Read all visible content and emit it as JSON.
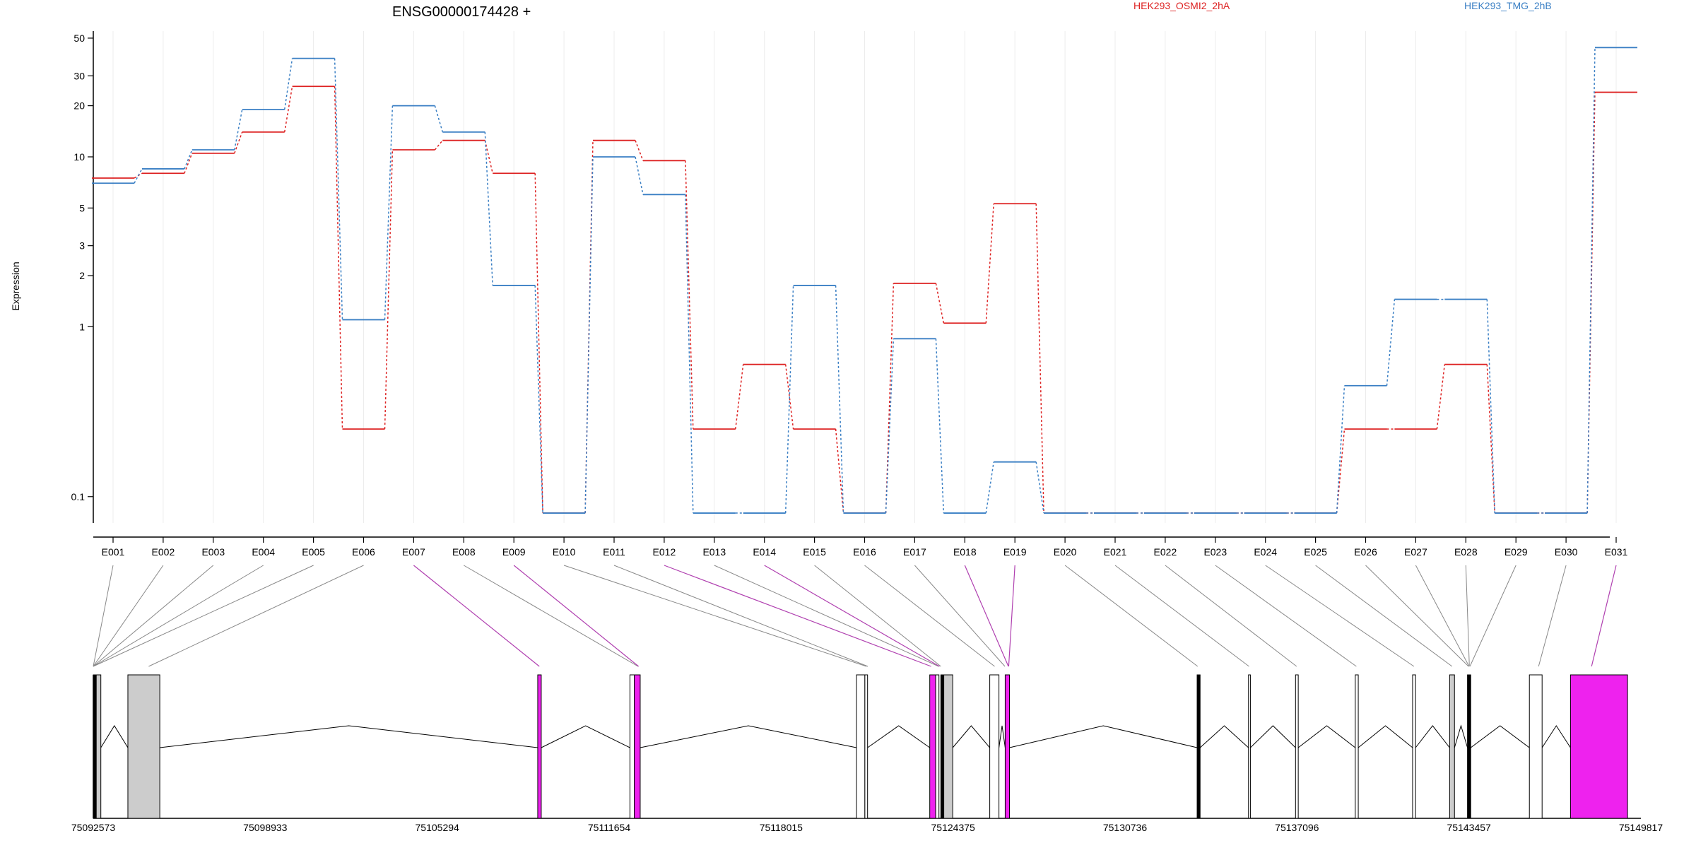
{
  "chart_data": {
    "type": "line",
    "title": "ENSG00000174428 +",
    "ylabel": "Expression",
    "xlabel": "",
    "y_scale": "log",
    "ylim": [
      0.07,
      55
    ],
    "y_ticks": [
      0.1,
      1,
      2,
      3,
      5,
      10,
      20,
      30,
      50
    ],
    "y_tick_labels": [
      "0.1",
      "1",
      "2",
      "3",
      "5",
      "10",
      "20",
      "30",
      "50"
    ],
    "grid": "vertical lines at exon positions",
    "legend_placement": "top",
    "categories": [
      "E001",
      "E002",
      "E003",
      "E004",
      "E005",
      "E006",
      "E007",
      "E008",
      "E009",
      "E010",
      "E011",
      "E012",
      "E013",
      "E014",
      "E015",
      "E016",
      "E017",
      "E018",
      "E019",
      "E020",
      "E021",
      "E022",
      "E023",
      "E024",
      "E025",
      "E026",
      "E027",
      "E028",
      "E029",
      "E030",
      "E031"
    ],
    "series": [
      {
        "name": "HEK293_OSMI2_2hA",
        "color": "#dd2222",
        "values": [
          7.5,
          8,
          10.5,
          14,
          26,
          0.25,
          11,
          12.5,
          8,
          0.08,
          12.5,
          9.5,
          0.25,
          0.6,
          0.25,
          0.08,
          1.8,
          1.05,
          5.3,
          0.08,
          0.08,
          0.08,
          0.08,
          0.08,
          0.08,
          0.25,
          0.25,
          0.6,
          0.08,
          0.08,
          24
        ]
      },
      {
        "name": "HEK293_TMG_2hB",
        "color": "#3a7fc4",
        "values": [
          7,
          8.5,
          11,
          19,
          38,
          1.1,
          20,
          14,
          1.75,
          0.08,
          10,
          6,
          0.08,
          0.08,
          1.75,
          0.08,
          0.85,
          0.08,
          0.16,
          0.08,
          0.08,
          0.08,
          0.08,
          0.08,
          0.08,
          0.45,
          1.45,
          1.45,
          0.08,
          0.08,
          44
        ]
      }
    ],
    "gene_model": {
      "coordinate_labels": [
        "75092573",
        "75098933",
        "75105294",
        "75111654",
        "75118015",
        "75124375",
        "75130736",
        "75137096",
        "75143457",
        "75149817"
      ],
      "coord_start": 75092573,
      "coord_end": 75149817,
      "exons": [
        {
          "start": 75092573,
          "end": 75092683,
          "fill": "#000000"
        },
        {
          "start": 75092683,
          "end": 75092853,
          "fill": "#cccccc"
        },
        {
          "start": 75093853,
          "end": 75095033,
          "fill": "#cccccc"
        },
        {
          "start": 75109013,
          "end": 75109143,
          "fill": "#ee22ee"
        },
        {
          "start": 75112423,
          "end": 75112583,
          "fill": "#ffffff"
        },
        {
          "start": 75112583,
          "end": 75112803,
          "fill": "#ee22ee"
        },
        {
          "start": 75120803,
          "end": 75121113,
          "fill": "#ffffff"
        },
        {
          "start": 75121113,
          "end": 75121213,
          "fill": "#ffffff"
        },
        {
          "start": 75123513,
          "end": 75123733,
          "fill": "#ee22ee"
        },
        {
          "start": 75123733,
          "end": 75123853,
          "fill": "#ffffff"
        },
        {
          "start": 75123923,
          "end": 75124033,
          "fill": "#000000"
        },
        {
          "start": 75124033,
          "end": 75124363,
          "fill": "#cccccc"
        },
        {
          "start": 75125733,
          "end": 75126073,
          "fill": "#ffffff"
        },
        {
          "start": 75126303,
          "end": 75126463,
          "fill": "#ee22ee"
        },
        {
          "start": 75133403,
          "end": 75133513,
          "fill": "#000000"
        },
        {
          "start": 75135303,
          "end": 75135373,
          "fill": "#ffffff"
        },
        {
          "start": 75137043,
          "end": 75137143,
          "fill": "#ffffff"
        },
        {
          "start": 75139253,
          "end": 75139363,
          "fill": "#ffffff"
        },
        {
          "start": 75141373,
          "end": 75141483,
          "fill": "#ffffff"
        },
        {
          "start": 75142743,
          "end": 75142923,
          "fill": "#cccccc"
        },
        {
          "start": 75143403,
          "end": 75143523,
          "fill": "#000000"
        },
        {
          "start": 75145693,
          "end": 75146163,
          "fill": "#ffffff"
        },
        {
          "start": 75147213,
          "end": 75149323,
          "fill": "#ee22ee"
        }
      ],
      "connector_targets": [
        75092573,
        75092573,
        75092573,
        75092573,
        75092573,
        75094623,
        75109073,
        75112723,
        75112743,
        75121173,
        75121223,
        75123563,
        75123843,
        75123873,
        75123923,
        75125913,
        75126293,
        75126423,
        75126433,
        75133423,
        75135323,
        75137083,
        75139293,
        75141423,
        75142833,
        75143443,
        75143463,
        75143473,
        75143493,
        75146033,
        75147993
      ],
      "highlight_connectors": [
        6,
        8,
        11,
        13,
        17,
        18,
        30
      ]
    }
  }
}
